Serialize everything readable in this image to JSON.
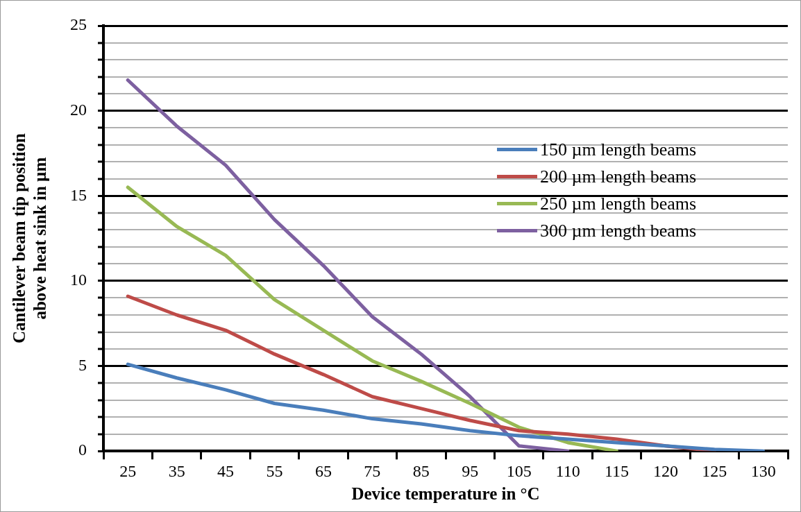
{
  "chart_data": {
    "type": "line",
    "xlabel": "Device temperature in °C",
    "ylabel": "Cantilever beam tip position above heat sink in µm",
    "categories": [
      "25",
      "35",
      "45",
      "55",
      "65",
      "75",
      "85",
      "95",
      "105",
      "110",
      "115",
      "120",
      "125",
      "130"
    ],
    "series": [
      {
        "name": "150 µm length beams",
        "color": "#4a7ebb",
        "values": [
          5.1,
          4.3,
          3.6,
          2.8,
          2.4,
          1.9,
          1.6,
          1.2,
          0.9,
          0.7,
          0.5,
          0.3,
          0.1,
          0.0
        ]
      },
      {
        "name": "200 µm length beams",
        "color": "#be4b48",
        "values": [
          9.1,
          8.0,
          7.1,
          5.7,
          4.5,
          3.2,
          2.5,
          1.8,
          1.2,
          1.0,
          0.7,
          0.3,
          0.0,
          null
        ]
      },
      {
        "name": "250 µm length beams",
        "color": "#98b954",
        "values": [
          15.5,
          13.2,
          11.5,
          8.9,
          7.1,
          5.3,
          4.1,
          2.8,
          1.4,
          0.5,
          0.0,
          null,
          null,
          null
        ]
      },
      {
        "name": "300 µm length beams",
        "color": "#7d60a0",
        "values": [
          21.8,
          19.1,
          16.8,
          13.6,
          10.9,
          7.9,
          5.7,
          3.2,
          0.3,
          0.0,
          null,
          null,
          null,
          null
        ]
      }
    ],
    "ylim": [
      0,
      25
    ],
    "yticks": [
      0,
      {
        "value": 1,
        "label": null
      },
      {
        "value": 2,
        "label": null
      },
      {
        "value": 3,
        "label": null
      },
      {
        "value": 4,
        "label": null
      },
      5,
      {
        "value": 6,
        "label": null
      },
      {
        "value": 7,
        "label": null
      },
      {
        "value": 8,
        "label": null
      },
      {
        "value": 9,
        "label": null
      },
      10,
      {
        "value": 11,
        "label": null
      },
      {
        "value": 12,
        "label": null
      },
      {
        "value": 13,
        "label": null
      },
      {
        "value": 14,
        "label": null
      },
      15,
      {
        "value": 16,
        "label": null
      },
      {
        "value": 17,
        "label": null
      },
      {
        "value": 18,
        "label": null
      },
      {
        "value": 19,
        "label": null
      },
      20,
      {
        "value": 21,
        "label": null
      },
      {
        "value": 22,
        "label": null
      },
      {
        "value": 23,
        "label": null
      },
      {
        "value": 24,
        "label": null
      },
      25
    ],
    "grid": "y",
    "legend": "right",
    "marker": "none",
    "line_style": "solid"
  }
}
